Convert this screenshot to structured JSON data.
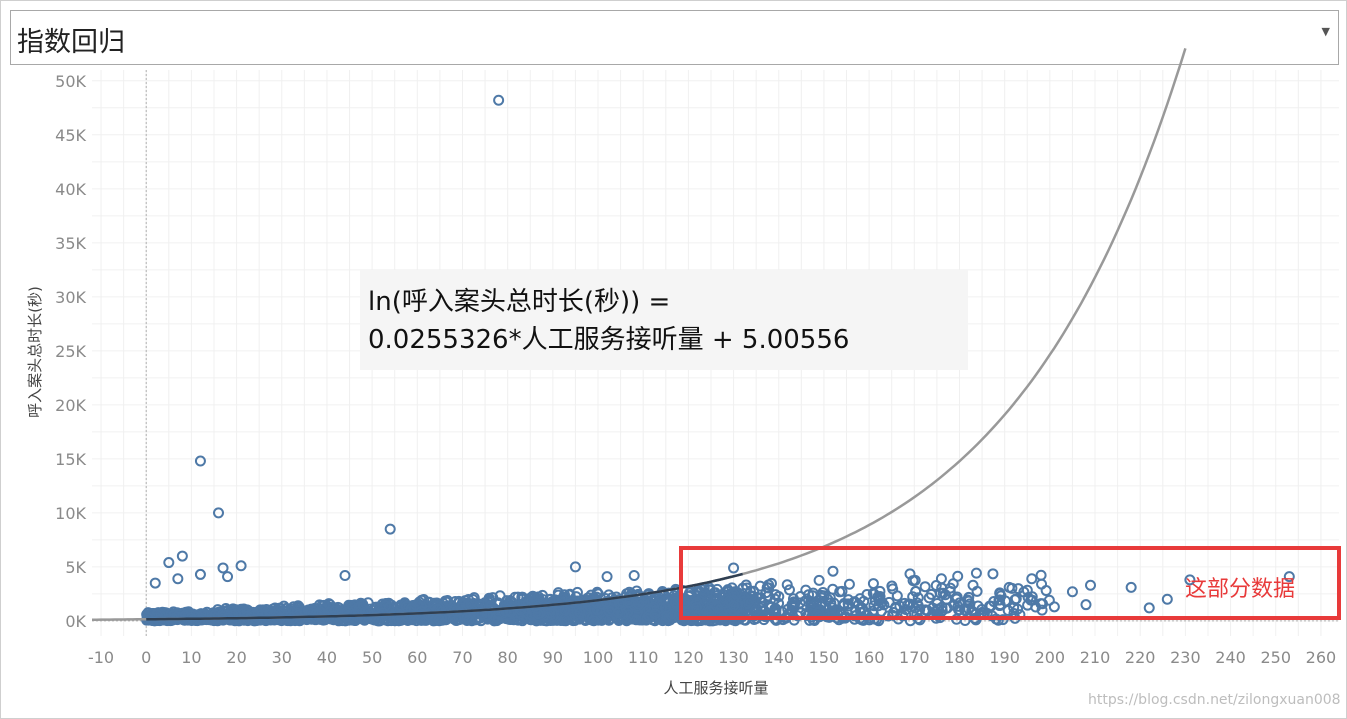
{
  "dropdown": {
    "label": "指数回归",
    "caret": "▼"
  },
  "watermark": "https://blog.csdn.net/zilongxuan008",
  "chart_data": {
    "type": "scatter",
    "xlabel": "人工服务接听量",
    "ylabel": "呼入案头总时长(秒)",
    "x_ticks": [
      "-10",
      "0",
      "10",
      "20",
      "30",
      "40",
      "50",
      "60",
      "70",
      "80",
      "90",
      "100",
      "110",
      "120",
      "130",
      "140",
      "150",
      "160",
      "170",
      "180",
      "190",
      "200",
      "210",
      "220",
      "230",
      "240",
      "250",
      "260"
    ],
    "y_ticks": [
      "0K",
      "5K",
      "10K",
      "15K",
      "20K",
      "25K",
      "30K",
      "35K",
      "40K",
      "45K",
      "50K"
    ],
    "xlim": [
      -12,
      264
    ],
    "ylim": [
      -1400,
      51000
    ],
    "grid": true,
    "point_color": "#4e79a7",
    "trend_color": "#999999",
    "annotation": {
      "line1": "ln(呼入案头总时长(秒)) =",
      "line2": "0.0255326*人工服务接听量 + 5.00556"
    },
    "trend": {
      "type": "exponential",
      "a": 0.0255326,
      "b": 5.00556
    },
    "highlight": {
      "label": "这部分数据",
      "color": "#e83a3a"
    },
    "outliers": [
      {
        "x": 78,
        "y": 48200
      },
      {
        "x": 12,
        "y": 14800
      },
      {
        "x": 16,
        "y": 10000
      },
      {
        "x": 54,
        "y": 8500
      },
      {
        "x": 8,
        "y": 6000
      },
      {
        "x": 5,
        "y": 5400
      },
      {
        "x": 21,
        "y": 5100
      },
      {
        "x": 95,
        "y": 5000
      },
      {
        "x": 17,
        "y": 4900
      },
      {
        "x": 12,
        "y": 4300
      },
      {
        "x": 18,
        "y": 4100
      },
      {
        "x": 44,
        "y": 4200
      },
      {
        "x": 102,
        "y": 4100
      },
      {
        "x": 108,
        "y": 4200
      },
      {
        "x": 2,
        "y": 3500
      },
      {
        "x": 7,
        "y": 3900
      },
      {
        "x": 130,
        "y": 4900
      },
      {
        "x": 152,
        "y": 4600
      },
      {
        "x": 196,
        "y": 3900
      },
      {
        "x": 209,
        "y": 3300
      },
      {
        "x": 231,
        "y": 3800
      },
      {
        "x": 253,
        "y": 4100
      },
      {
        "x": 218,
        "y": 3100
      },
      {
        "x": 205,
        "y": 2700
      },
      {
        "x": 226,
        "y": 2000
      },
      {
        "x": 222,
        "y": 1200
      },
      {
        "x": 191,
        "y": 3100
      },
      {
        "x": 183,
        "y": 3300
      },
      {
        "x": 176,
        "y": 3900
      },
      {
        "x": 198,
        "y": 1600
      },
      {
        "x": 189,
        "y": 1500
      },
      {
        "x": 208,
        "y": 1500
      },
      {
        "x": 201,
        "y": 1300
      }
    ]
  }
}
